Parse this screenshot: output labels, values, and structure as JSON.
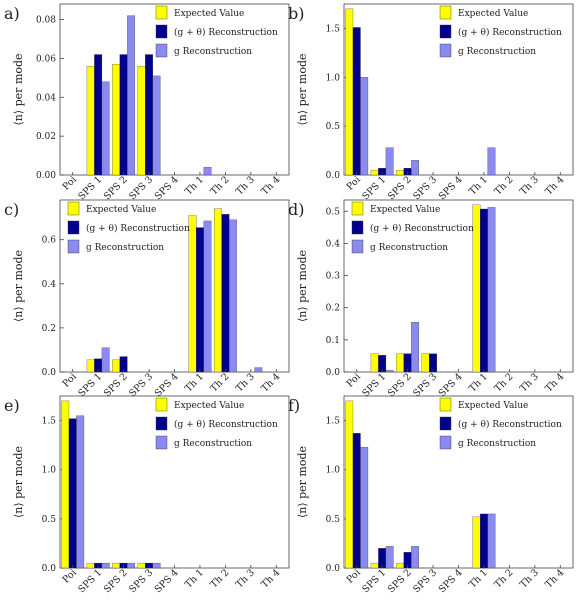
{
  "figure": {
    "ylabel": "⟨n⟩ per mode",
    "legend": [
      {
        "key": "expected",
        "label": "Expected Value",
        "color": "#ffff00"
      },
      {
        "key": "gtheta",
        "label": "(g + θ) Reconstruction",
        "color": "#00008b"
      },
      {
        "key": "g",
        "label": "g Reconstruction",
        "color": "#8a8aef"
      }
    ]
  },
  "chart_data": [
    {
      "type": "bar",
      "panel": "a)",
      "categories": [
        "Poi",
        "SPS 1",
        "SPS 2",
        "SPS 3",
        "SPS 4",
        "Th 1",
        "Th 2",
        "Th 3",
        "Th 4"
      ],
      "ylim": [
        0,
        0.088
      ],
      "yticks": [
        "0.00",
        "0.02",
        "0.04",
        "0.06",
        "0.08"
      ],
      "ytick_values": [
        0,
        0.02,
        0.04,
        0.06,
        0.08
      ],
      "legend_position": "top-right",
      "series": [
        {
          "name": "Expected Value",
          "values": [
            0,
            0.056,
            0.057,
            0.056,
            0,
            0,
            0,
            0,
            0
          ]
        },
        {
          "name": "(g + θ) Reconstruction",
          "values": [
            0,
            0.062,
            0.062,
            0.062,
            0,
            0,
            0,
            0,
            0
          ]
        },
        {
          "name": "g Reconstruction",
          "values": [
            0,
            0.048,
            0.082,
            0.051,
            0,
            0.004,
            0,
            0,
            0
          ]
        }
      ]
    },
    {
      "type": "bar",
      "panel": "b)",
      "categories": [
        "Poi",
        "SPS 1",
        "SPS 2",
        "SPS 3",
        "SPS 4",
        "Th 1",
        "Th 2",
        "Th 3",
        "Th 4"
      ],
      "ylim": [
        0,
        1.75
      ],
      "yticks": [
        "0.0",
        "0.5",
        "1.0",
        "1.5"
      ],
      "ytick_values": [
        0,
        0.5,
        1.0,
        1.5
      ],
      "legend_position": "top-right",
      "series": [
        {
          "name": "Expected Value",
          "values": [
            1.7,
            0.05,
            0.05,
            0,
            0,
            0,
            0,
            0,
            0
          ]
        },
        {
          "name": "(g + θ) Reconstruction",
          "values": [
            1.51,
            0.07,
            0.07,
            0,
            0,
            0,
            0,
            0,
            0
          ]
        },
        {
          "name": "g Reconstruction",
          "values": [
            1.0,
            0.28,
            0.15,
            0,
            0,
            0.28,
            0,
            0,
            0
          ]
        }
      ]
    },
    {
      "type": "bar",
      "panel": "c)",
      "categories": [
        "Poi",
        "SPS 1",
        "SPS 2",
        "SPS 3",
        "SPS 4",
        "Th 1",
        "Th 2",
        "Th 3",
        "Th 4"
      ],
      "ylim": [
        0,
        0.78
      ],
      "yticks": [
        "0.0",
        "0.2",
        "0.4",
        "0.6"
      ],
      "ytick_values": [
        0,
        0.2,
        0.4,
        0.6
      ],
      "legend_position": "top-left",
      "series": [
        {
          "name": "Expected Value",
          "values": [
            0,
            0.055,
            0.055,
            0,
            0,
            0.71,
            0.74,
            0,
            0
          ]
        },
        {
          "name": "(g + θ) Reconstruction",
          "values": [
            0,
            0.06,
            0.07,
            0,
            0,
            0.655,
            0.715,
            0,
            0
          ]
        },
        {
          "name": "g Reconstruction",
          "values": [
            0,
            0.11,
            0,
            0,
            0,
            0.685,
            0.69,
            0.02,
            0
          ]
        }
      ]
    },
    {
      "type": "bar",
      "panel": "d)",
      "categories": [
        "Poi",
        "SPS 1",
        "SPS 2",
        "SPS 3",
        "SPS 4",
        "Th 1",
        "Th 2",
        "Th 3",
        "Th 4"
      ],
      "ylim": [
        0,
        0.535
      ],
      "yticks": [
        "0.0",
        "0.1",
        "0.2",
        "0.3",
        "0.4",
        "0.5"
      ],
      "ytick_values": [
        0,
        0.1,
        0.2,
        0.3,
        0.4,
        0.5
      ],
      "legend_position": "top-left",
      "series": [
        {
          "name": "Expected Value",
          "values": [
            0,
            0.057,
            0.057,
            0.057,
            0,
            0.52,
            0,
            0,
            0
          ]
        },
        {
          "name": "(g + θ) Reconstruction",
          "values": [
            0,
            0.052,
            0.057,
            0.057,
            0,
            0.507,
            0,
            0,
            0
          ]
        },
        {
          "name": "g Reconstruction",
          "values": [
            0,
            0.005,
            0.155,
            0,
            0,
            0.512,
            0,
            0,
            0
          ]
        }
      ]
    },
    {
      "type": "bar",
      "panel": "e)",
      "categories": [
        "Poi",
        "SPS 1",
        "SPS 2",
        "SPS 3",
        "SPS 4",
        "Th 1",
        "Th 2",
        "Th 3",
        "Th 4"
      ],
      "ylim": [
        0,
        1.75
      ],
      "yticks": [
        "0.0",
        "0.5",
        "1.0",
        "1.5"
      ],
      "ytick_values": [
        0,
        0.5,
        1.0,
        1.5
      ],
      "legend_position": "top-right",
      "series": [
        {
          "name": "Expected Value",
          "values": [
            1.7,
            0.05,
            0.05,
            0.05,
            0,
            0,
            0,
            0,
            0
          ]
        },
        {
          "name": "(g + θ) Reconstruction",
          "values": [
            1.52,
            0.05,
            0.05,
            0.05,
            0,
            0,
            0,
            0,
            0
          ]
        },
        {
          "name": "g Reconstruction",
          "values": [
            1.55,
            0.05,
            0.05,
            0.05,
            0,
            0,
            0,
            0,
            0
          ]
        }
      ]
    },
    {
      "type": "bar",
      "panel": "f)",
      "categories": [
        "Poi",
        "SPS 1",
        "SPS 2",
        "SPS 3",
        "SPS 4",
        "Th 1",
        "Th 2",
        "Th 3",
        "Th 4"
      ],
      "ylim": [
        0,
        1.75
      ],
      "yticks": [
        "0.0",
        "0.5",
        "1.0",
        "1.5"
      ],
      "ytick_values": [
        0,
        0.5,
        1.0,
        1.5
      ],
      "legend_position": "top-right",
      "series": [
        {
          "name": "Expected Value",
          "values": [
            1.7,
            0.05,
            0.05,
            0,
            0,
            0.52,
            0,
            0,
            0
          ]
        },
        {
          "name": "(g + θ) Reconstruction",
          "values": [
            1.37,
            0.2,
            0.16,
            0,
            0,
            0.55,
            0,
            0,
            0
          ]
        },
        {
          "name": "g Reconstruction",
          "values": [
            1.23,
            0.22,
            0.22,
            0,
            0,
            0.55,
            0,
            0,
            0
          ]
        }
      ]
    }
  ]
}
